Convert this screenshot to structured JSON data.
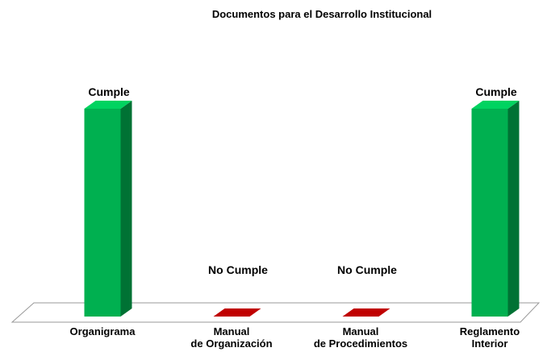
{
  "chart_data": {
    "type": "bar3d",
    "title": "Documentos para el Desarrollo Institucional",
    "categories": [
      "Organigrama",
      "Manual\nde Organización",
      "Manual\nde Procedimientos",
      "Reglamento\nInterior"
    ],
    "values": [
      1,
      0,
      0,
      1
    ],
    "value_labels": [
      "Cumple",
      "No Cumple",
      "No Cumple",
      "Cumple"
    ],
    "colors": [
      "#00b050",
      "#c00000",
      "#c00000",
      "#00b050"
    ],
    "ylim": [
      0,
      1
    ]
  }
}
